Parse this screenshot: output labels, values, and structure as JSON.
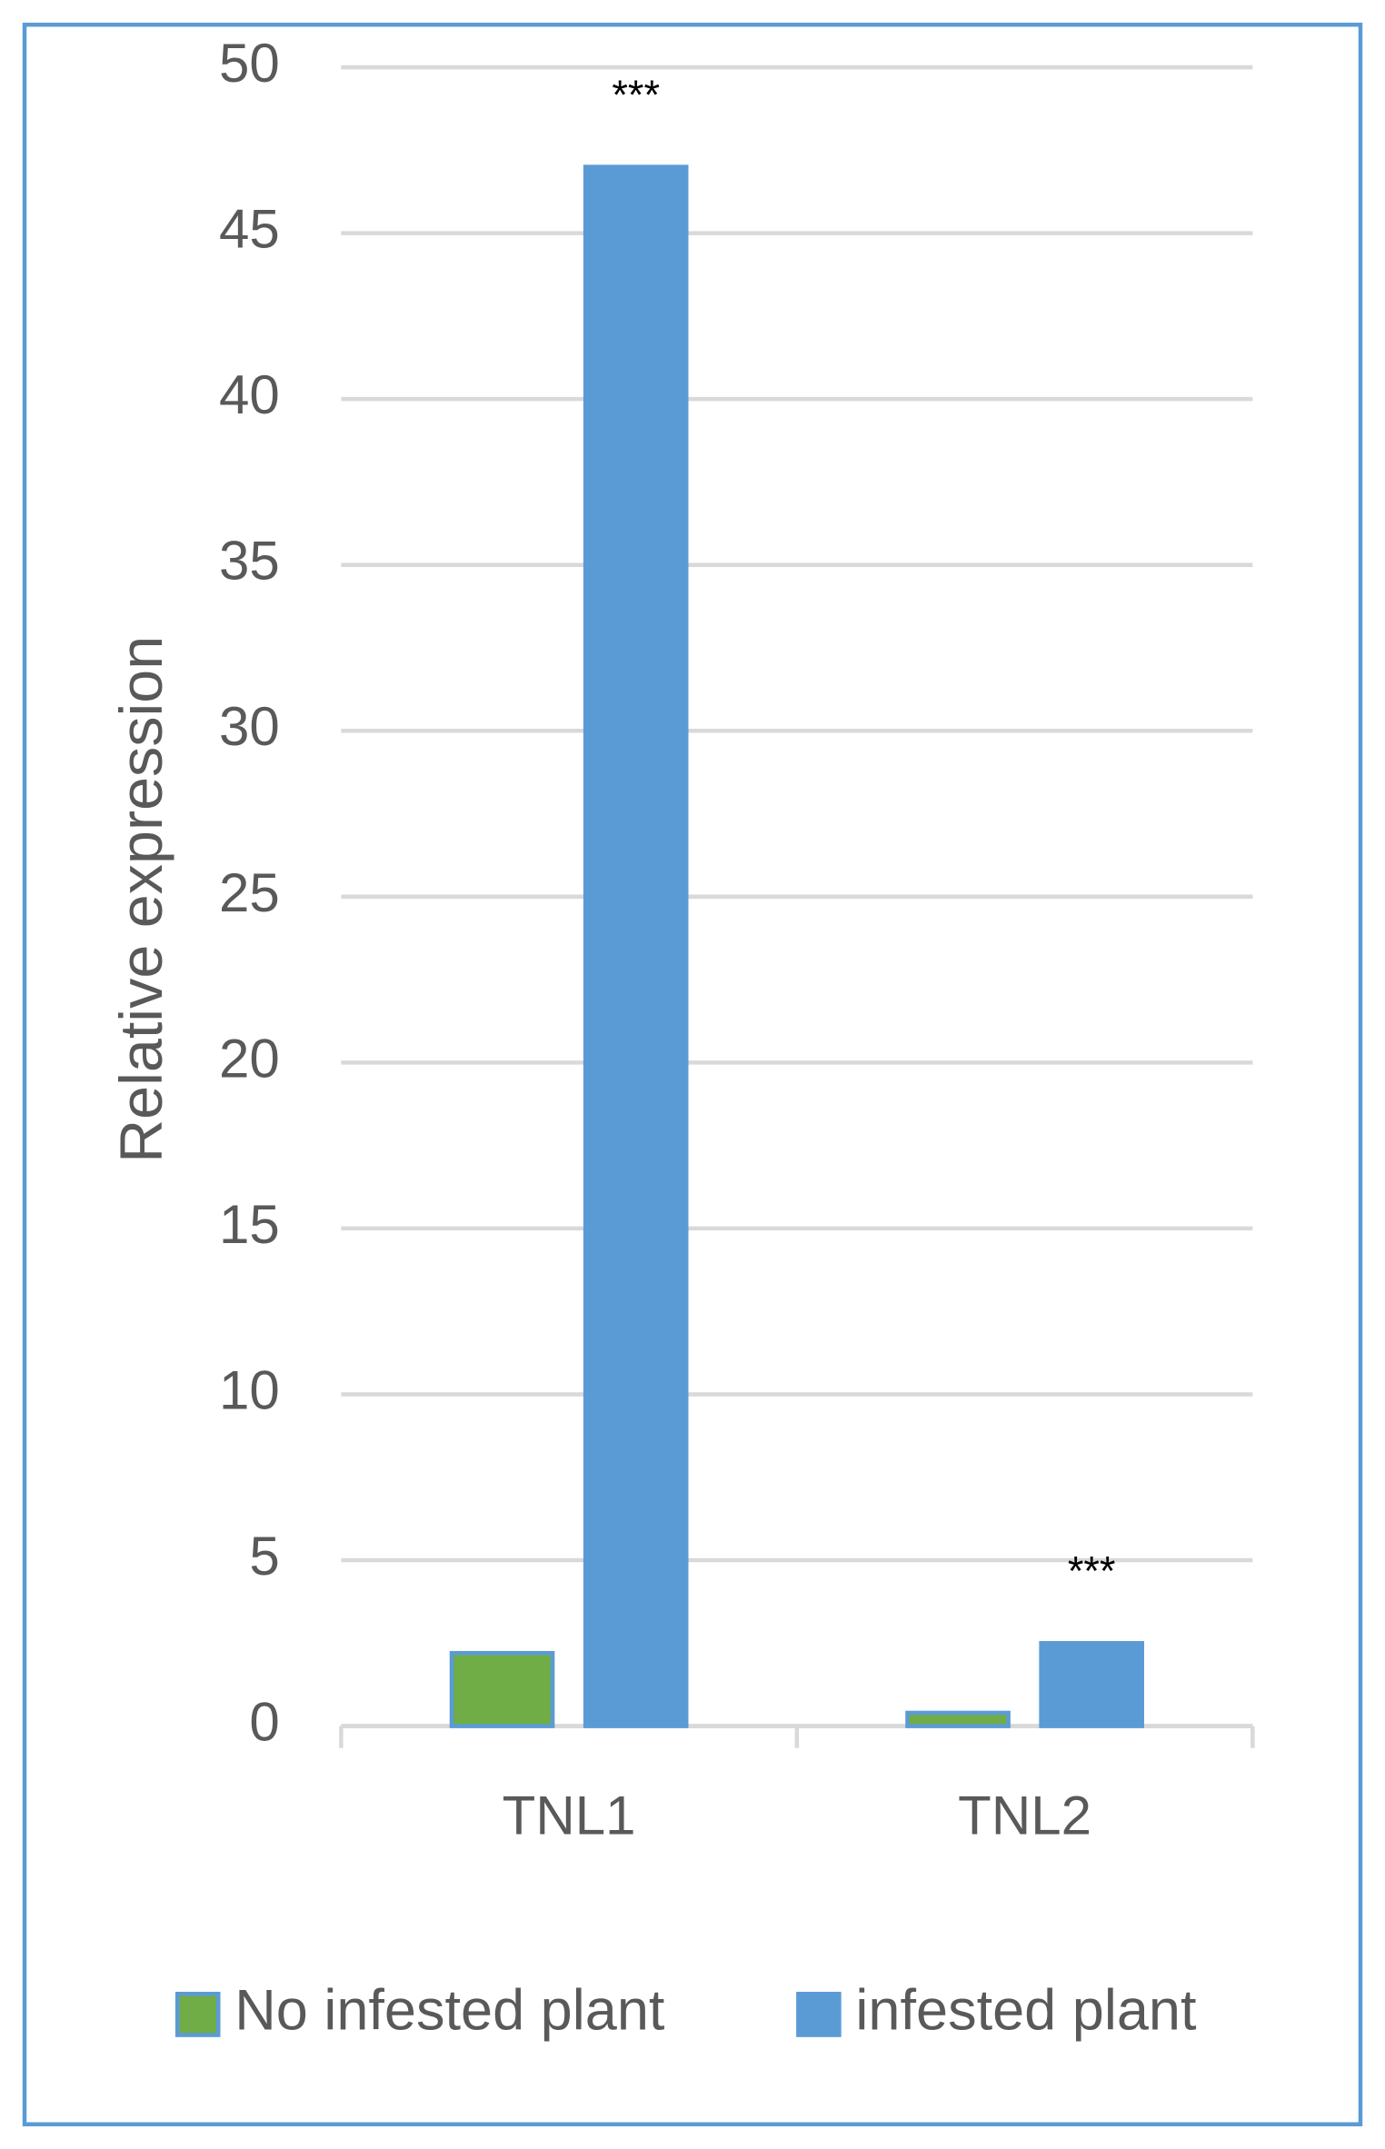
{
  "chart_data": {
    "type": "bar",
    "y_label": "Relative expression",
    "categories": [
      "TNL1",
      "TNL2"
    ],
    "series": [
      {
        "name": "No infested plant",
        "color": "#70ad47",
        "values": [
          2.2,
          0.4
        ]
      },
      {
        "name": "infested plant",
        "color": "#5b9bd5",
        "values": [
          47,
          2.5
        ]
      }
    ],
    "annotations": [
      "***",
      "***"
    ],
    "ylim": [
      0,
      50
    ],
    "yticks": [
      0,
      5,
      10,
      15,
      20,
      25,
      30,
      35,
      40,
      45,
      50
    ],
    "grid": true,
    "legend": "bottom"
  }
}
